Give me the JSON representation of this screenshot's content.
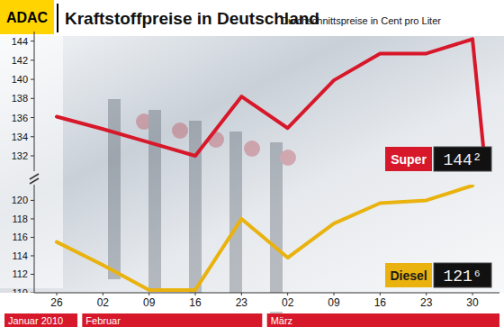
{
  "logo": "ADAC",
  "chart_data": {
    "type": "line",
    "title": "Kraftstoffpreise in Deutschland",
    "subtitle": "Durchschnittspreise in Cent pro Liter",
    "categories": [
      "26",
      "02",
      "09",
      "16",
      "23",
      "02",
      "09",
      "16",
      "23",
      "30"
    ],
    "x_groups": [
      {
        "label": "Januar 2010",
        "start": 0,
        "end": 0
      },
      {
        "label": "Februar",
        "start": 1,
        "end": 4
      },
      {
        "label": "März",
        "start": 5,
        "end": 9
      }
    ],
    "series": [
      {
        "name": "Super",
        "color": "#d7182a",
        "values": [
          136.1,
          134.8,
          133.4,
          132.0,
          138.2,
          134.9,
          139.9,
          142.7,
          142.7,
          144.2
        ]
      },
      {
        "name": "Diesel",
        "color": "#e9b20e",
        "axis": "y2",
        "values": [
          115.5,
          113.0,
          110.3,
          110.3,
          118.0,
          113.8,
          117.5,
          119.7,
          120.0,
          121.6
        ]
      }
    ],
    "annotations": [
      {
        "series": 0,
        "text": "144²"
      },
      {
        "series": 1,
        "text": "121⁶"
      }
    ],
    "ylim": [
      130.4,
      145
    ],
    "yticks": [
      132,
      134,
      136,
      138,
      140,
      142,
      144
    ],
    "y2lim": [
      110,
      121.7
    ],
    "y2ticks": [
      110,
      112,
      114,
      116,
      118,
      120
    ],
    "grid": false
  }
}
